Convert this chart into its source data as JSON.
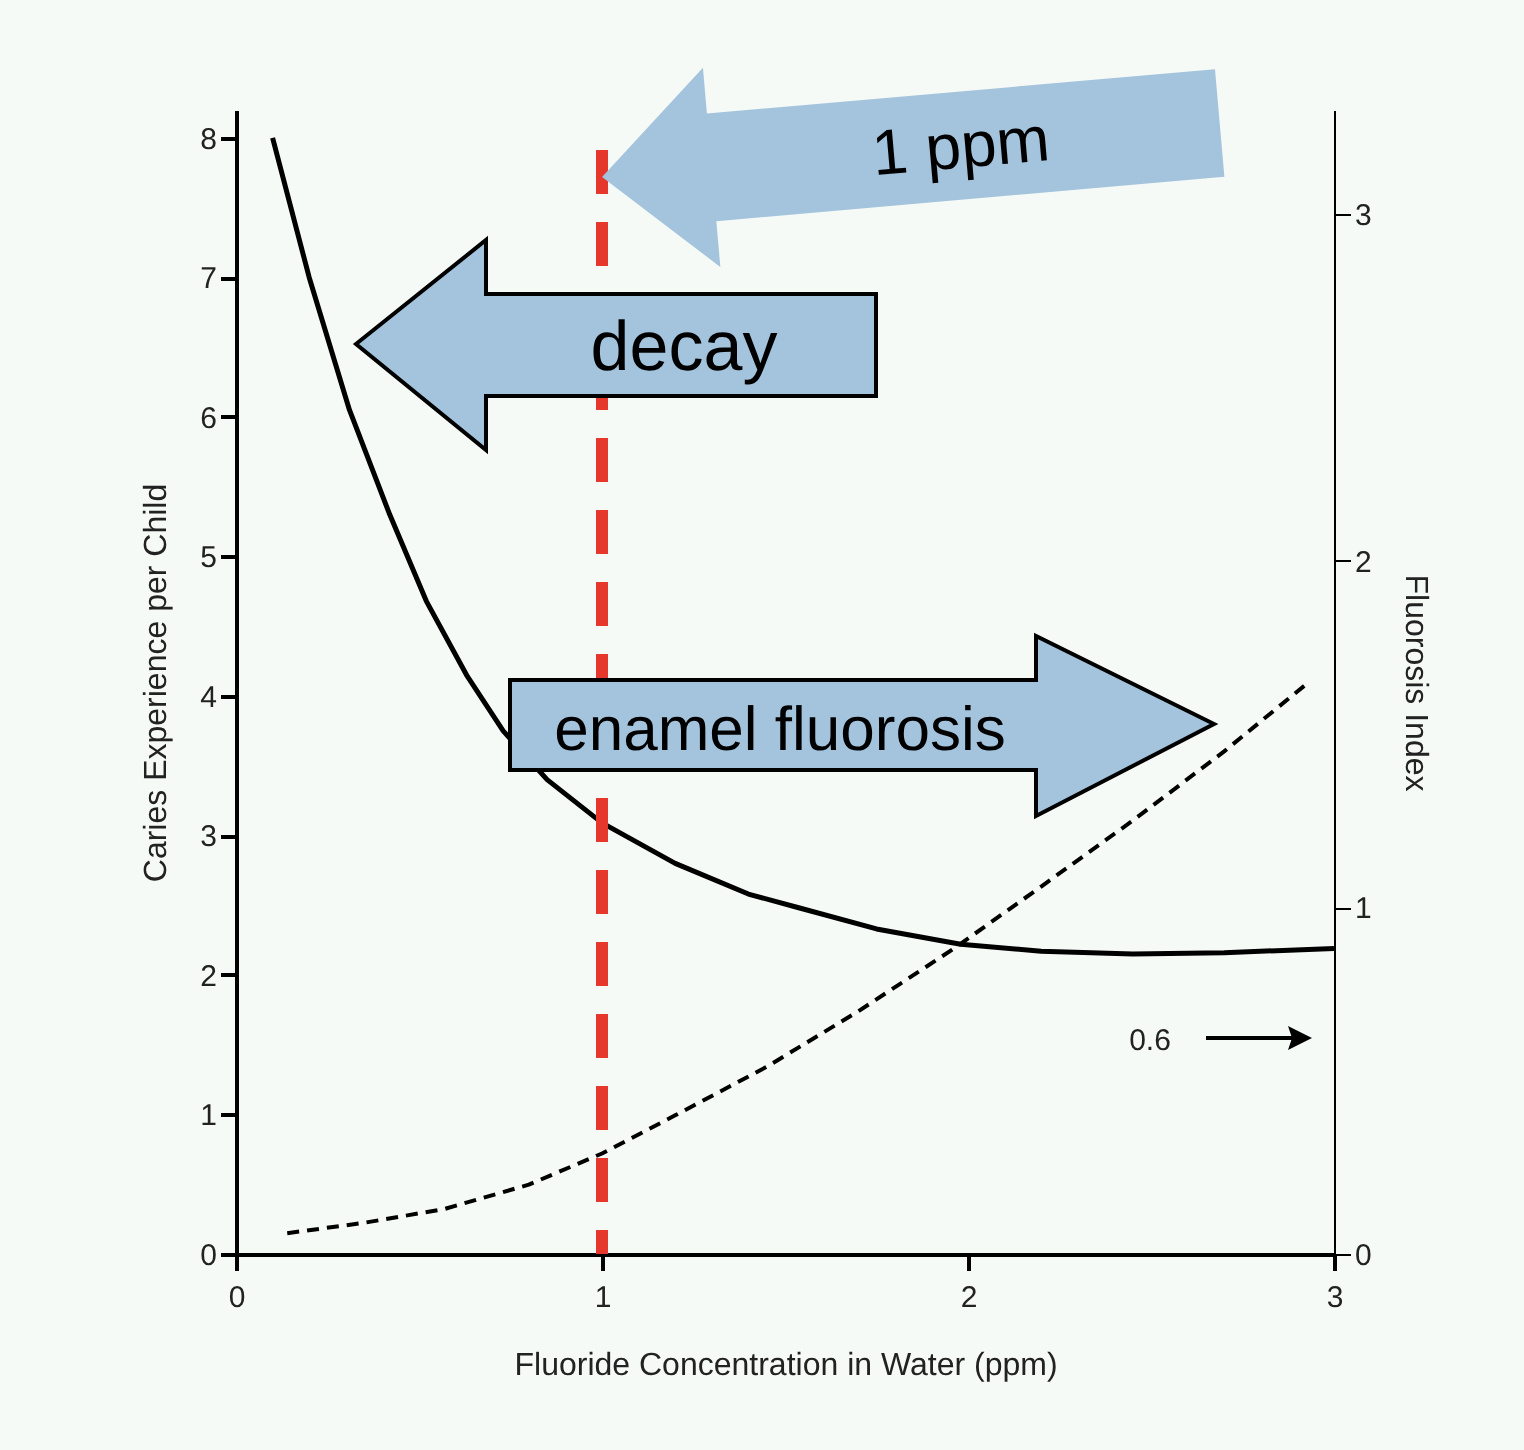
{
  "chart_data": {
    "type": "line",
    "xlabel": "Fluoride Concentration in Water (ppm)",
    "ylabel": "Caries Experience per Child",
    "y2label": "Fluorosis Index",
    "xlim": [
      0,
      3
    ],
    "xticks": [
      0,
      1,
      2,
      3
    ],
    "ylim": [
      0,
      8.2
    ],
    "yticks": [
      0,
      1,
      2,
      3,
      4,
      5,
      6,
      7,
      8
    ],
    "y2lim": [
      0,
      3.3
    ],
    "y2ticks": [
      0,
      1,
      2,
      3
    ],
    "series": [
      {
        "color": "#000000",
        "line_style": "solid",
        "x": [
          0.1,
          0.2,
          0.31,
          0.42,
          0.52,
          0.63,
          0.73,
          0.85,
          1.0,
          1.2,
          1.4,
          1.54,
          1.75,
          1.98,
          2.2,
          2.45,
          2.7,
          3.0
        ],
        "values": [
          8.0,
          7.0,
          6.05,
          5.3,
          4.68,
          4.15,
          3.75,
          3.4,
          3.09,
          2.8,
          2.58,
          2.48,
          2.33,
          2.22,
          2.17,
          2.15,
          2.16,
          2.19
        ]
      },
      {
        "color": "#000000",
        "line_style": "dashed",
        "axis": "y2",
        "x": [
          0.14,
          0.35,
          0.57,
          0.8,
          1.0,
          1.2,
          1.45,
          1.7,
          1.96,
          2.2,
          2.45,
          2.7,
          2.92
        ],
        "values": [
          0.06,
          0.09,
          0.13,
          0.2,
          0.29,
          0.4,
          0.54,
          0.7,
          0.88,
          1.06,
          1.25,
          1.45,
          1.64
        ]
      }
    ],
    "ref_lines": [
      {
        "axis": "x",
        "value": 1,
        "color": "#e5372c",
        "line_style": "dashed"
      }
    ],
    "annotations": [
      "1 ppm",
      "decay",
      "enamel fluorosis",
      "0.6"
    ]
  }
}
